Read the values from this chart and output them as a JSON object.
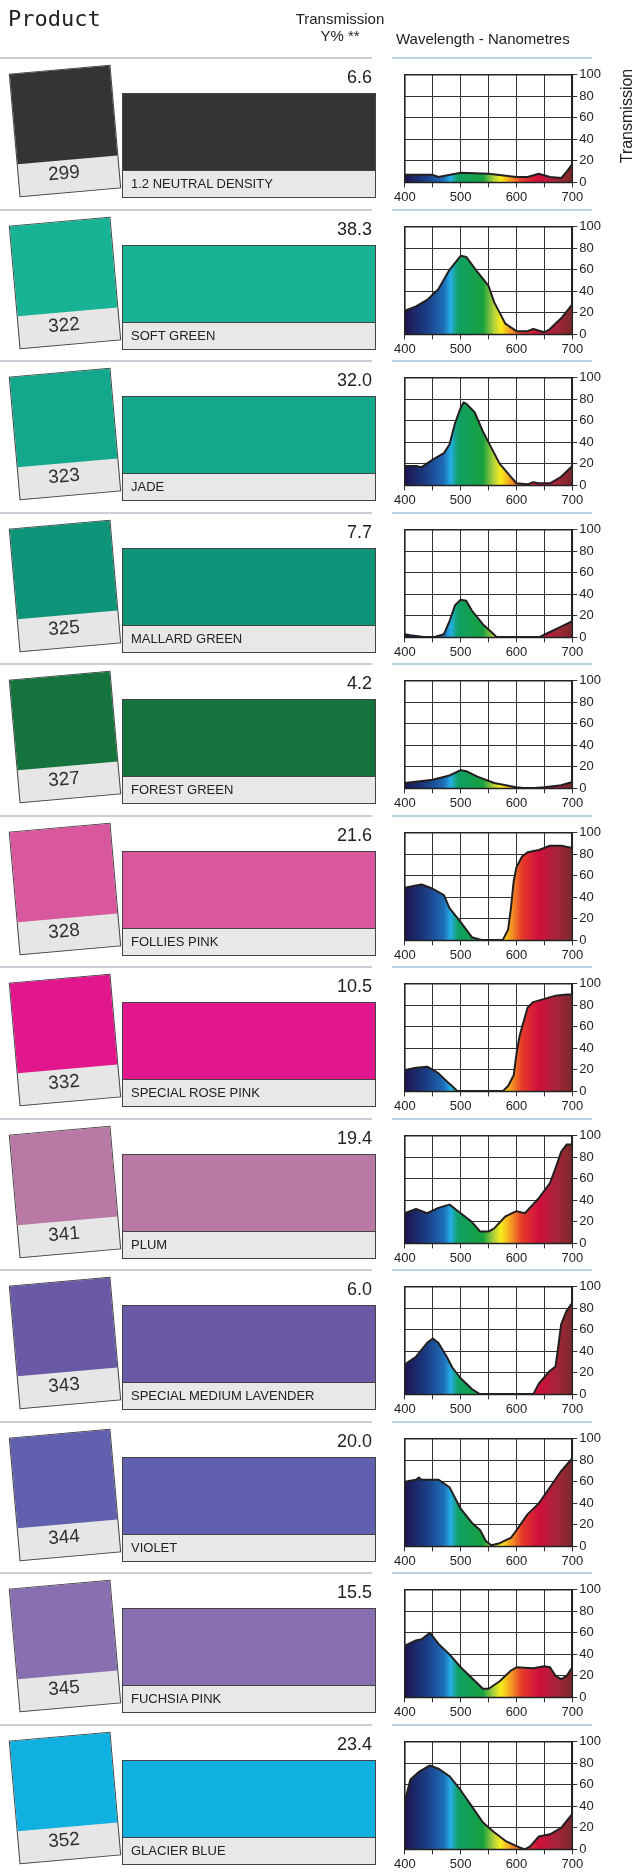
{
  "chart_data": [
    {
      "type": "area",
      "annotations": [
        "6.6",
        "1.2 NEUTRAL DENSITY",
        "299",
        "Product",
        "Transmission Y% **"
      ],
      "xlabel": "Wavelength - Nanometres",
      "ylabel": "Transmission",
      "x": [
        400,
        450,
        460,
        500,
        550,
        600,
        620,
        640,
        660,
        680,
        690,
        700
      ],
      "series": [
        {
          "color": "#231f20",
          "values": [
            7,
            7,
            5,
            9,
            8,
            5,
            5,
            8,
            5,
            4,
            10,
            17
          ]
        }
      ],
      "xlim": [
        400,
        700
      ],
      "xticks": [
        400,
        {
          "value": 450,
          "label": null
        },
        500,
        {
          "value": 550,
          "label": null
        },
        600,
        {
          "value": 650,
          "label": null
        },
        700
      ],
      "ylim": [
        0,
        100
      ],
      "yticks": [
        0,
        20,
        40,
        60,
        80,
        100
      ],
      "grid": true
    },
    {
      "type": "area",
      "annotations": [
        "38.3",
        "SOFT GREEN",
        "322"
      ],
      "x": [
        400,
        420,
        440,
        460,
        480,
        500,
        510,
        530,
        550,
        560,
        570,
        580,
        600,
        620,
        630,
        650,
        660,
        680,
        700
      ],
      "series": [
        {
          "color": "#231f20",
          "values": [
            22,
            26,
            32,
            42,
            60,
            73,
            72,
            58,
            45,
            30,
            20,
            10,
            3,
            3,
            5,
            2,
            5,
            15,
            28
          ]
        }
      ],
      "xlim": [
        400,
        700
      ],
      "xticks": [
        400,
        {
          "value": 450,
          "label": null
        },
        500,
        {
          "value": 550,
          "label": null
        },
        600,
        {
          "value": 650,
          "label": null
        },
        700
      ],
      "ylim": [
        0,
        100
      ],
      "yticks": [
        0,
        20,
        40,
        60,
        80,
        100
      ],
      "grid": true
    },
    {
      "type": "area",
      "annotations": [
        "32.0",
        "JADE",
        "323"
      ],
      "x": [
        400,
        420,
        430,
        450,
        470,
        480,
        490,
        500,
        505,
        510,
        525,
        540,
        550,
        560,
        570,
        590,
        600,
        620,
        630,
        640,
        660,
        680,
        700
      ],
      "series": [
        {
          "color": "#231f20",
          "values": [
            18,
            18,
            17,
            24,
            30,
            38,
            58,
            72,
            77,
            76,
            68,
            50,
            40,
            30,
            20,
            8,
            2,
            1,
            3,
            2,
            2,
            8,
            18
          ]
        }
      ],
      "xlim": [
        400,
        700
      ],
      "xticks": [
        400,
        {
          "value": 450,
          "label": null
        },
        500,
        {
          "value": 550,
          "label": null
        },
        600,
        {
          "value": 650,
          "label": null
        },
        700
      ],
      "ylim": [
        0,
        100
      ],
      "yticks": [
        0,
        20,
        40,
        60,
        80,
        100
      ],
      "grid": true
    },
    {
      "type": "area",
      "annotations": [
        "7.7",
        "MALLARD GREEN",
        "325"
      ],
      "x": [
        400,
        410,
        440,
        450,
        470,
        480,
        490,
        500,
        510,
        520,
        540,
        555,
        565,
        640,
        660,
        680,
        700
      ],
      "series": [
        {
          "color": "#231f20",
          "values": [
            3,
            2,
            0,
            0,
            3,
            15,
            30,
            35,
            34,
            25,
            12,
            5,
            0,
            0,
            5,
            10,
            15
          ]
        }
      ],
      "xlim": [
        400,
        700
      ],
      "xticks": [
        400,
        {
          "value": 450,
          "label": null
        },
        500,
        {
          "value": 550,
          "label": null
        },
        600,
        {
          "value": 650,
          "label": null
        },
        700
      ],
      "ylim": [
        0,
        100
      ],
      "yticks": [
        0,
        20,
        40,
        60,
        80,
        100
      ],
      "grid": true
    },
    {
      "type": "area",
      "annotations": [
        "4.2",
        "FOREST GREEN",
        "327"
      ],
      "x": [
        400,
        450,
        480,
        500,
        510,
        530,
        560,
        600,
        620,
        650,
        680,
        700
      ],
      "series": [
        {
          "color": "#231f20",
          "values": [
            5,
            8,
            12,
            17,
            16,
            11,
            5,
            1,
            0,
            1,
            3,
            6
          ]
        }
      ],
      "xlim": [
        400,
        700
      ],
      "xticks": [
        400,
        {
          "value": 450,
          "label": null
        },
        500,
        {
          "value": 550,
          "label": null
        },
        600,
        {
          "value": 650,
          "label": null
        },
        700
      ],
      "ylim": [
        0,
        100
      ],
      "yticks": [
        0,
        20,
        40,
        60,
        80,
        100
      ],
      "grid": true
    },
    {
      "type": "area",
      "annotations": [
        "21.6",
        "FOLLIES PINK",
        "328"
      ],
      "x": [
        400,
        420,
        430,
        450,
        470,
        480,
        500,
        520,
        540,
        560,
        575,
        585,
        590,
        595,
        600,
        610,
        620,
        640,
        660,
        680,
        700
      ],
      "series": [
        {
          "color": "#231f20",
          "values": [
            49,
            51,
            52,
            48,
            42,
            30,
            17,
            3,
            0,
            0,
            0,
            10,
            30,
            55,
            68,
            78,
            82,
            84,
            88,
            88,
            86
          ]
        }
      ],
      "xlim": [
        400,
        700
      ],
      "xticks": [
        400,
        {
          "value": 450,
          "label": null
        },
        500,
        {
          "value": 550,
          "label": null
        },
        600,
        {
          "value": 650,
          "label": null
        },
        700
      ],
      "ylim": [
        0,
        100
      ],
      "yticks": [
        0,
        20,
        40,
        60,
        80,
        100
      ],
      "grid": true
    },
    {
      "type": "area",
      "annotations": [
        "10.5",
        "SPECIAL ROSE PINK",
        "332"
      ],
      "x": [
        400,
        420,
        440,
        460,
        480,
        495,
        560,
        575,
        585,
        595,
        600,
        605,
        610,
        620,
        630,
        650,
        670,
        690,
        700
      ],
      "series": [
        {
          "color": "#231f20",
          "values": [
            20,
            22,
            23,
            17,
            7,
            0,
            0,
            0,
            5,
            15,
            35,
            50,
            60,
            78,
            83,
            86,
            89,
            90,
            90
          ]
        }
      ],
      "xlim": [
        400,
        700
      ],
      "xticks": [
        400,
        {
          "value": 450,
          "label": null
        },
        500,
        {
          "value": 550,
          "label": null
        },
        600,
        {
          "value": 650,
          "label": null
        },
        700
      ],
      "ylim": [
        0,
        100
      ],
      "yticks": [
        0,
        20,
        40,
        60,
        80,
        100
      ],
      "grid": true
    },
    {
      "type": "area",
      "annotations": [
        "19.4",
        "PLUM",
        "341"
      ],
      "x": [
        400,
        420,
        440,
        460,
        480,
        500,
        520,
        535,
        550,
        560,
        580,
        600,
        615,
        640,
        660,
        670,
        680,
        690,
        700
      ],
      "series": [
        {
          "color": "#231f20",
          "values": [
            28,
            32,
            28,
            33,
            36,
            28,
            20,
            11,
            11,
            14,
            25,
            30,
            28,
            42,
            56,
            70,
            85,
            92,
            92
          ]
        }
      ],
      "xlim": [
        400,
        700
      ],
      "xticks": [
        400,
        {
          "value": 450,
          "label": null
        },
        500,
        {
          "value": 550,
          "label": null
        },
        600,
        {
          "value": 650,
          "label": null
        },
        700
      ],
      "ylim": [
        0,
        100
      ],
      "yticks": [
        0,
        20,
        40,
        60,
        80,
        100
      ],
      "grid": true
    },
    {
      "type": "area",
      "annotations": [
        "6.0",
        "SPECIAL MEDIUM LAVENDER",
        "343"
      ],
      "x": [
        400,
        420,
        440,
        450,
        460,
        475,
        485,
        500,
        520,
        535,
        630,
        640,
        660,
        670,
        675,
        680,
        690,
        700
      ],
      "series": [
        {
          "color": "#231f20",
          "values": [
            28,
            35,
            48,
            52,
            48,
            35,
            25,
            15,
            5,
            0,
            0,
            10,
            22,
            26,
            45,
            65,
            78,
            85
          ]
        }
      ],
      "xlim": [
        400,
        700
      ],
      "xticks": [
        400,
        {
          "value": 450,
          "label": null
        },
        500,
        {
          "value": 550,
          "label": null
        },
        600,
        {
          "value": 650,
          "label": null
        },
        700
      ],
      "ylim": [
        0,
        100
      ],
      "yticks": [
        0,
        20,
        40,
        60,
        80,
        100
      ],
      "grid": true
    },
    {
      "type": "area",
      "annotations": [
        "20.0",
        "VIOLET",
        "344"
      ],
      "x": [
        400,
        420,
        425,
        430,
        460,
        480,
        490,
        500,
        520,
        535,
        545,
        555,
        570,
        590,
        600,
        620,
        640,
        660,
        680,
        700
      ],
      "series": [
        {
          "color": "#231f20",
          "values": [
            60,
            62,
            64,
            62,
            62,
            55,
            45,
            35,
            22,
            15,
            5,
            1,
            3,
            8,
            15,
            30,
            40,
            55,
            70,
            82
          ]
        }
      ],
      "xlim": [
        400,
        700
      ],
      "xticks": [
        400,
        {
          "value": 450,
          "label": null
        },
        500,
        {
          "value": 550,
          "label": null
        },
        600,
        {
          "value": 650,
          "label": null
        },
        700
      ],
      "ylim": [
        0,
        100
      ],
      "yticks": [
        0,
        20,
        40,
        60,
        80,
        100
      ],
      "grid": true
    },
    {
      "type": "area",
      "annotations": [
        "15.5",
        "FUCHSIA PINK",
        "345"
      ],
      "x": [
        400,
        420,
        430,
        445,
        460,
        480,
        500,
        520,
        540,
        550,
        570,
        590,
        600,
        630,
        650,
        660,
        670,
        680,
        690,
        700
      ],
      "series": [
        {
          "color": "#231f20",
          "values": [
            48,
            53,
            54,
            60,
            50,
            40,
            28,
            18,
            8,
            8,
            15,
            25,
            28,
            27,
            29,
            28,
            20,
            17,
            20,
            28
          ]
        }
      ],
      "xlim": [
        400,
        700
      ],
      "xticks": [
        400,
        {
          "value": 450,
          "label": null
        },
        500,
        {
          "value": 550,
          "label": null
        },
        600,
        {
          "value": 650,
          "label": null
        },
        700
      ],
      "ylim": [
        0,
        100
      ],
      "yticks": [
        0,
        20,
        40,
        60,
        80,
        100
      ],
      "grid": true
    },
    {
      "type": "area",
      "annotations": [
        "23.4",
        "GLACIER BLUE",
        "352"
      ],
      "x": [
        400,
        410,
        425,
        445,
        460,
        480,
        500,
        520,
        540,
        560,
        580,
        600,
        615,
        625,
        640,
        660,
        680,
        700
      ],
      "series": [
        {
          "color": "#231f20",
          "values": [
            45,
            65,
            72,
            78,
            75,
            68,
            55,
            40,
            25,
            16,
            8,
            3,
            0,
            3,
            12,
            14,
            20,
            33
          ]
        }
      ],
      "xlim": [
        400,
        700
      ],
      "xticks": [
        400,
        {
          "value": 450,
          "label": null
        },
        500,
        {
          "value": 550,
          "label": null
        },
        600,
        {
          "value": 650,
          "label": null
        },
        700
      ],
      "ylim": [
        0,
        100
      ],
      "yticks": [
        0,
        20,
        40,
        60,
        80,
        100
      ],
      "grid": true
    }
  ]
}
